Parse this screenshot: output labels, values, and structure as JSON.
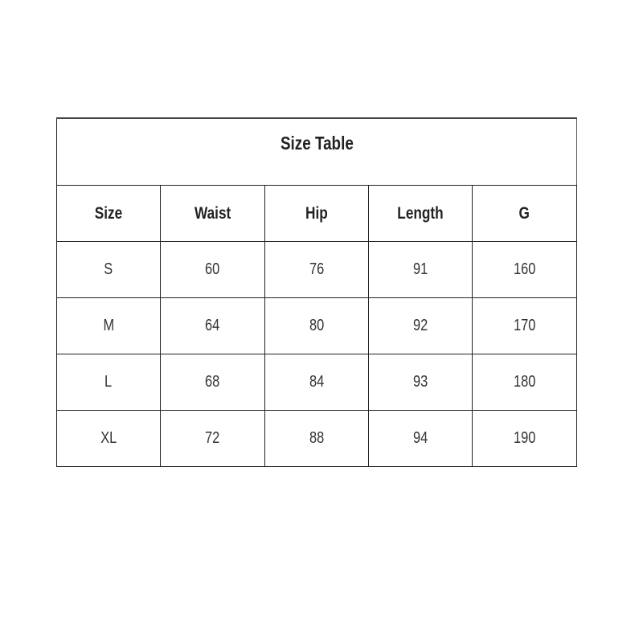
{
  "title": "Size Table",
  "columns": [
    "Size",
    "Waist",
    "Hip",
    "Length",
    "G"
  ],
  "rows": [
    [
      "S",
      "60",
      "76",
      "91",
      "160"
    ],
    [
      "M",
      "64",
      "80",
      "92",
      "170"
    ],
    [
      "L",
      "68",
      "84",
      "93",
      "180"
    ],
    [
      "XL",
      "72",
      "88",
      "94",
      "190"
    ]
  ]
}
